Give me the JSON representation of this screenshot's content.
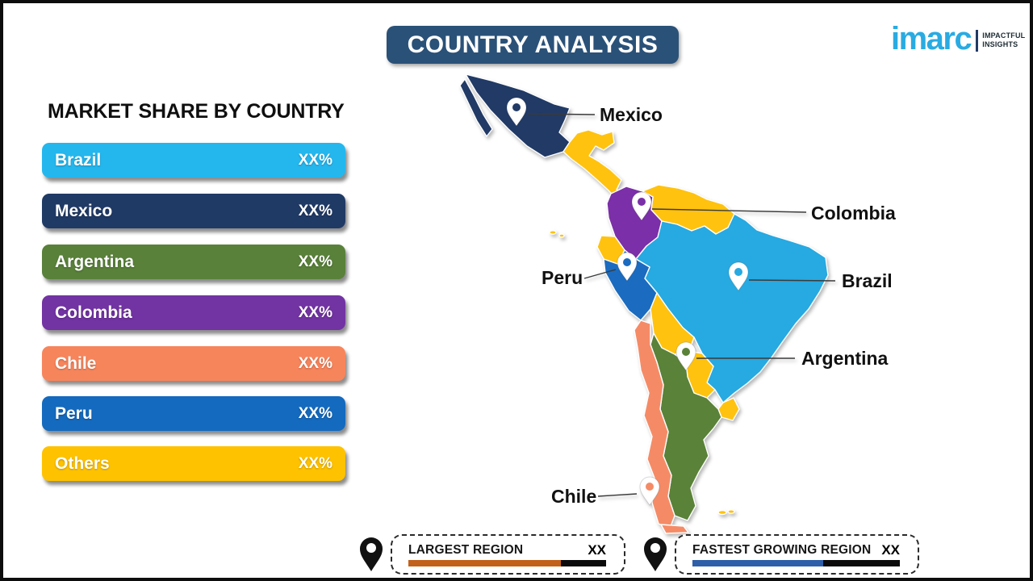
{
  "title": "COUNTRY ANALYSIS",
  "logo": {
    "brand": "imarc",
    "brand_color": "#29ABE2",
    "tagline_line1": "IMPACTFUL",
    "tagline_line2": "INSIGHTS",
    "tagline_color": "#1d2b33"
  },
  "market_share": {
    "heading": "MARKET SHARE BY COUNTRY",
    "items": [
      {
        "label": "Brazil",
        "value": "XX%",
        "color": "#24B7EE"
      },
      {
        "label": "Mexico",
        "value": "XX%",
        "color": "#203A66"
      },
      {
        "label": "Argentina",
        "value": "XX%",
        "color": "#59813A"
      },
      {
        "label": "Colombia",
        "value": "XX%",
        "color": "#7233A3"
      },
      {
        "label": "Chile",
        "value": "XX%",
        "color": "#F7855C"
      },
      {
        "label": "Peru",
        "value": "XX%",
        "color": "#146ABE"
      },
      {
        "label": "Others",
        "value": "XX%",
        "color": "#FEC200"
      }
    ]
  },
  "map": {
    "labels": {
      "mexico": "Mexico",
      "colombia": "Colombia",
      "peru": "Peru",
      "brazil": "Brazil",
      "argentina": "Argentina",
      "chile": "Chile"
    },
    "colors": {
      "mexico": "#213A66",
      "colombia": "#7B2FA8",
      "peru": "#1B6BC0",
      "brazil": "#27A9E1",
      "argentina": "#5A8238",
      "chile": "#F58B66",
      "others": "#FFC20E"
    }
  },
  "legend": {
    "items": [
      {
        "label": "LARGEST REGION",
        "value": "XX",
        "bar_color": "#C2611A",
        "bar_fill_pct": 77
      },
      {
        "label": "FASTEST GROWING REGION",
        "value": "XX",
        "bar_color": "#2F5FA9",
        "bar_fill_pct": 63
      }
    ]
  },
  "title_box_color": "#2A5178",
  "chart_data": {
    "type": "bar",
    "title": "MARKET SHARE BY COUNTRY",
    "categories": [
      "Brazil",
      "Mexico",
      "Argentina",
      "Colombia",
      "Chile",
      "Peru",
      "Others"
    ],
    "values": [
      "XX%",
      "XX%",
      "XX%",
      "XX%",
      "XX%",
      "XX%",
      "XX%"
    ]
  }
}
